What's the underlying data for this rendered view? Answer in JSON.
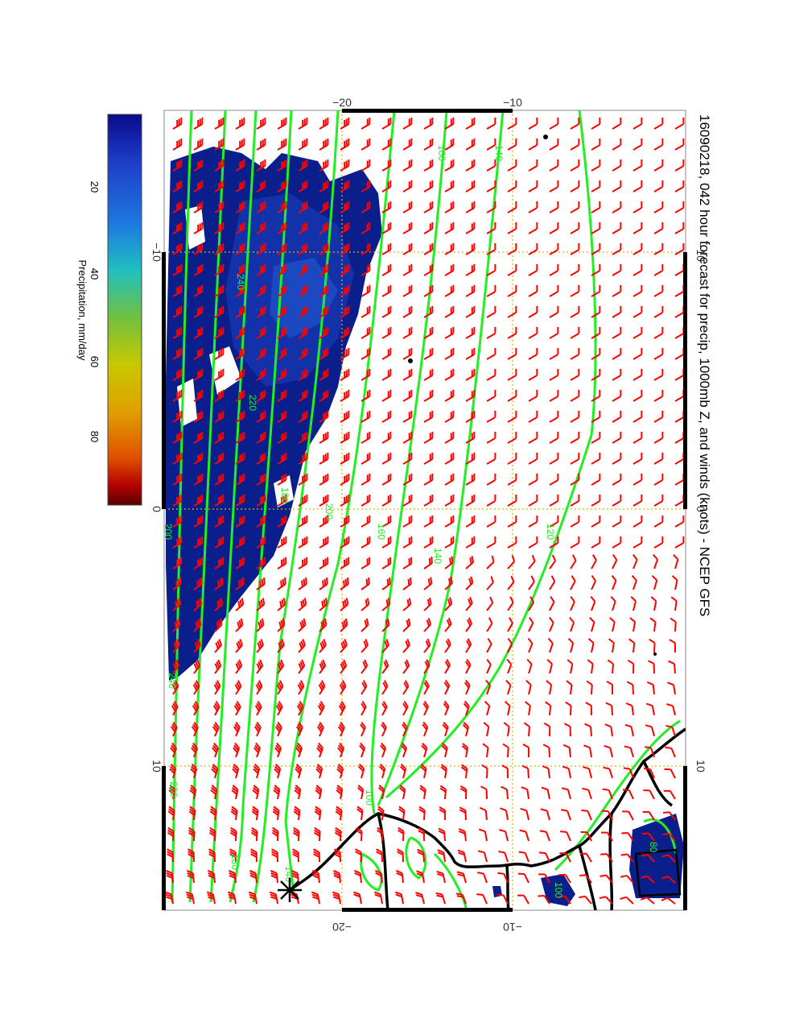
{
  "title": "16090218, 042 hour forecast for precip, 1000mb Z, and winds (knots) - NCEP GFS",
  "colorbar": {
    "label": "Precipitation, mm/day",
    "ticks": [
      "20",
      "40",
      "60",
      "80"
    ],
    "colors": [
      "#5a0000",
      "#b40000",
      "#e05000",
      "#e0a000",
      "#c8c800",
      "#70c040",
      "#20c0c0",
      "#1e78e0",
      "#1e3cc8",
      "#0a0a8c"
    ]
  },
  "axes": {
    "top_lat_labels": [
      "−20",
      "−10"
    ],
    "bottom_lat_labels": [
      "−20",
      "−10"
    ],
    "left_lon_labels": [
      "−10",
      "0",
      "10"
    ],
    "right_lon_labels": [
      "−10",
      "0",
      "10"
    ]
  },
  "contour_labels": [
    "160",
    "140",
    "240",
    "220",
    "180",
    "200",
    "160",
    "140",
    "120",
    "100",
    "200",
    "180",
    "240",
    "220",
    "140",
    "100",
    "80"
  ],
  "colors": {
    "wind_barb": "#ff0000",
    "contour": "#00ee00",
    "coast": "#000000",
    "grid": "#e0b000",
    "precip": "#0a1e8c"
  },
  "legend_icons": [
    "wind-barb-icon",
    "star-marker-icon"
  ]
}
